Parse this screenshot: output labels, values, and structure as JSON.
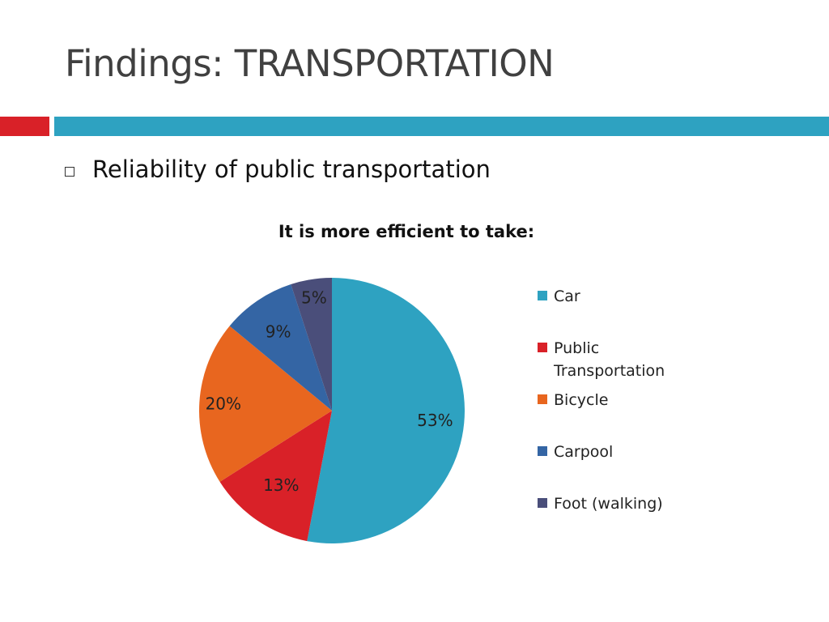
{
  "slide": {
    "title": "Findings: TRANSPORTATION",
    "bullet": "Reliability of public transportation"
  },
  "colors": {
    "accent_red": "#d92128",
    "accent_blue": "#2ea2c1"
  },
  "chart_data": {
    "type": "pie",
    "title": "It is more efficient to take:",
    "categories": [
      "Car",
      "Public Transportation",
      "Bicycle",
      "Carpool",
      "Foot (walking)"
    ],
    "values": [
      53,
      13,
      20,
      9,
      5
    ],
    "data_labels": [
      "53%",
      "13%",
      "20%",
      "9%",
      "5%"
    ],
    "colors": [
      "#2ea2c1",
      "#d92128",
      "#e8661f",
      "#3465a4",
      "#4a4e7a"
    ],
    "legend": {
      "position": "right",
      "entries": [
        {
          "label_lines": [
            "Car"
          ]
        },
        {
          "label_lines": [
            "Public",
            "Transportation"
          ]
        },
        {
          "label_lines": [
            "Bicycle"
          ]
        },
        {
          "label_lines": [
            "Carpool"
          ]
        },
        {
          "label_lines": [
            "Foot (walking)"
          ]
        }
      ]
    }
  }
}
